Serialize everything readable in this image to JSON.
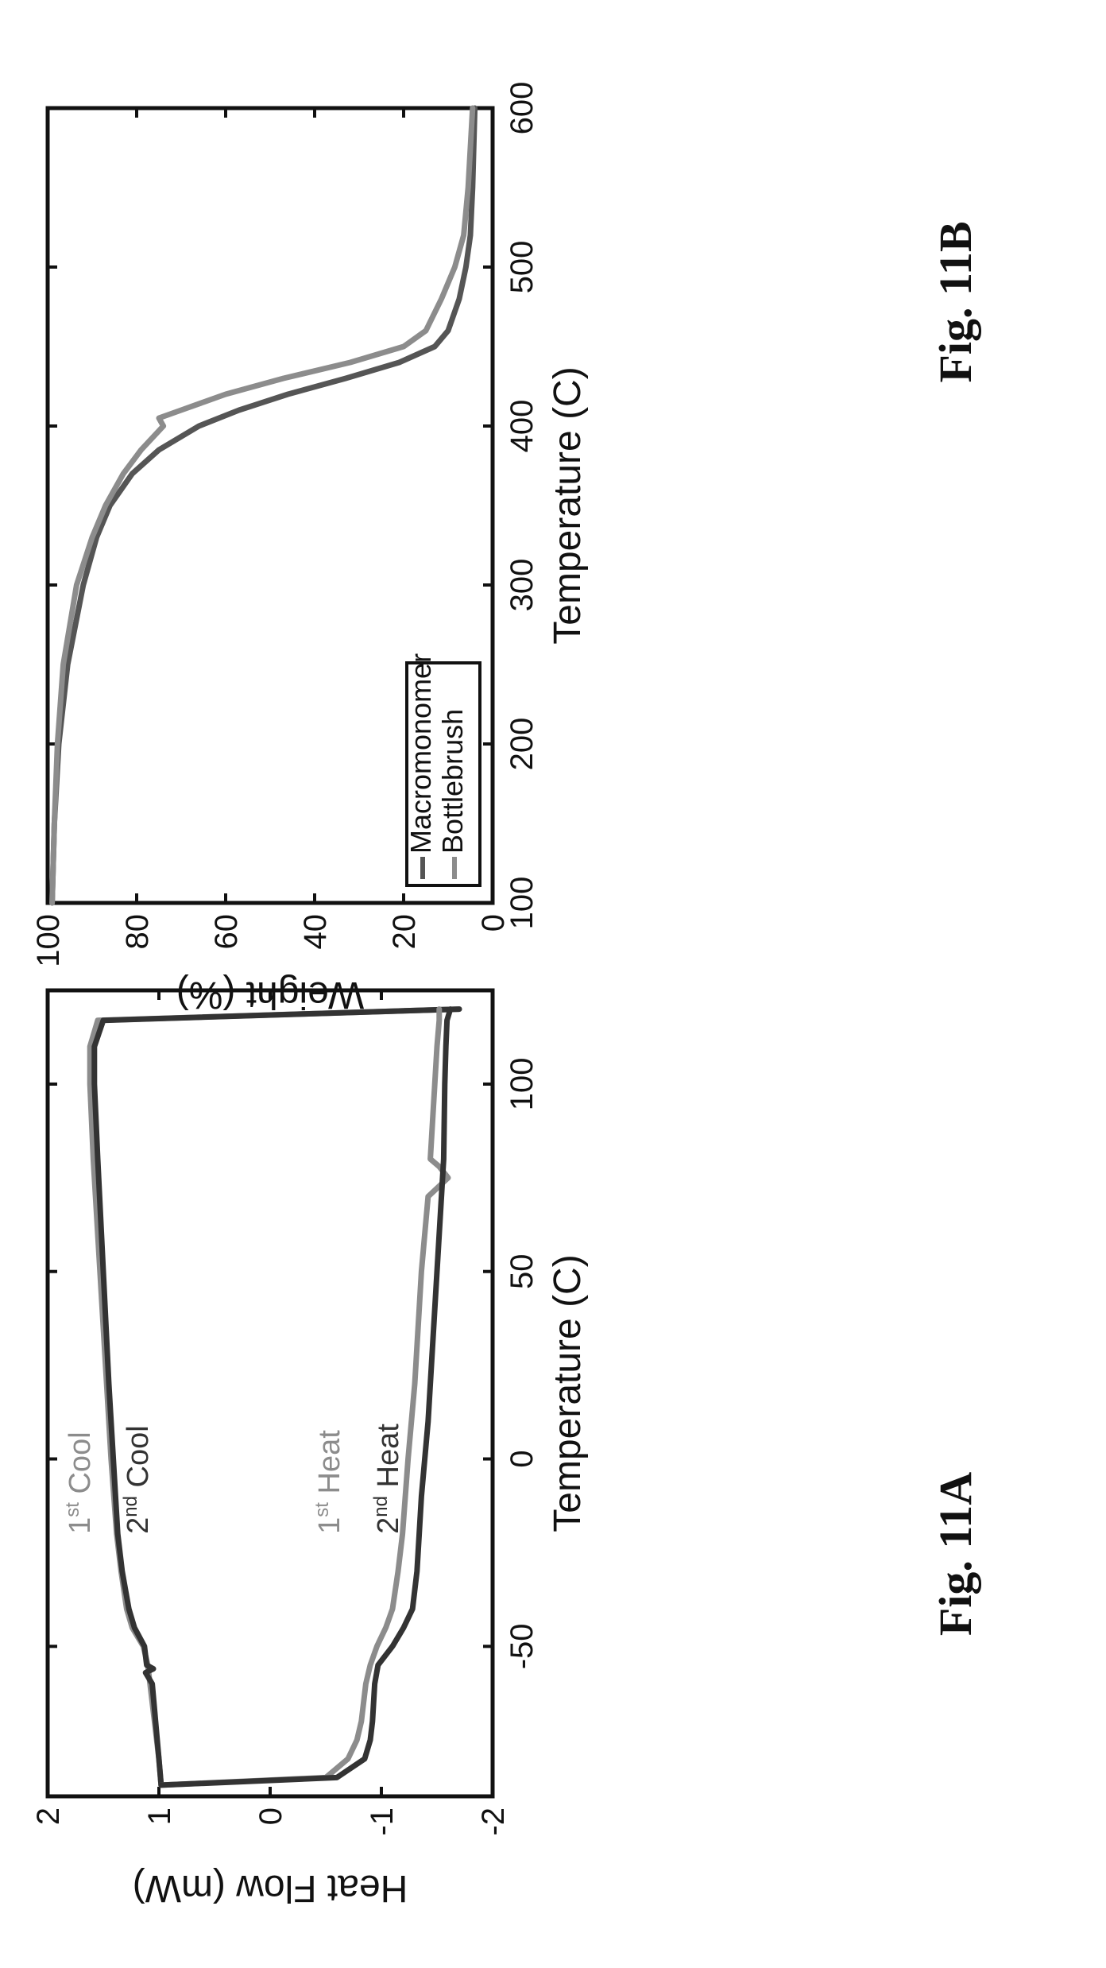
{
  "figures": {
    "fig_a_label": "Fig. 11A",
    "fig_b_label": "Fig. 11B"
  },
  "chart_data": [
    {
      "panel": "11A",
      "type": "line",
      "xlabel": "Temperature (C)",
      "ylabel": "Weight (%)",
      "xlim": [
        100,
        600
      ],
      "ylim": [
        0,
        100
      ],
      "xticks": [
        "100",
        "200",
        "300",
        "400",
        "500",
        "600"
      ],
      "yticks": [
        "0",
        "20",
        "40",
        "60",
        "80",
        "100"
      ],
      "legend_position": "lower-left",
      "grid": false,
      "series": [
        {
          "name": "Macromonomer",
          "color": "#555555",
          "x": [
            100,
            150,
            200,
            250,
            300,
            330,
            350,
            370,
            385,
            400,
            410,
            420,
            430,
            440,
            450,
            460,
            480,
            500,
            520,
            550,
            600
          ],
          "y": [
            99,
            98.5,
            97.5,
            95.5,
            92,
            89,
            86,
            81,
            75,
            66,
            57,
            46,
            33,
            21,
            13,
            10,
            7.5,
            6,
            5,
            4.5,
            4
          ]
        },
        {
          "name": "Bottlebrush",
          "color": "#8c8c8c",
          "x": [
            100,
            150,
            200,
            250,
            300,
            330,
            350,
            370,
            385,
            400,
            405,
            410,
            420,
            430,
            440,
            450,
            460,
            480,
            500,
            520,
            550,
            600
          ],
          "y": [
            99,
            98.5,
            97.8,
            96.5,
            93.5,
            90,
            87,
            83,
            79,
            74,
            75,
            70,
            60,
            47,
            32,
            20,
            15,
            11.5,
            8.5,
            6.5,
            5.5,
            4.5
          ]
        }
      ]
    },
    {
      "panel": "11B",
      "type": "line",
      "xlabel": "Temperature (C)",
      "ylabel": "Heat Flow (mW)",
      "xlim": [
        -90,
        125
      ],
      "ylim": [
        -2,
        2
      ],
      "xticks": [
        "-50",
        "0",
        "50",
        "100"
      ],
      "yticks": [
        "-2",
        "-1",
        "0",
        "1",
        "2"
      ],
      "grid": false,
      "annotations": [
        {
          "text": "1st Cool",
          "base": "1",
          "sup": "st",
          "rest": " Cool",
          "x": -20,
          "y": 1.62,
          "color": "#8c8c8c"
        },
        {
          "text": "2nd Cool",
          "base": "2",
          "sup": "nd",
          "rest": " Cool",
          "x": -20,
          "y": 1.1,
          "color": "#333333"
        },
        {
          "text": "1st Heat",
          "base": "1",
          "sup": "st",
          "rest": " Heat",
          "x": -20,
          "y": -0.62,
          "color": "#8c8c8c"
        },
        {
          "text": "2nd Heat",
          "base": "2",
          "sup": "nd",
          "rest": " Heat",
          "x": -20,
          "y": -1.15,
          "color": "#333333"
        }
      ],
      "series": [
        {
          "name": "1st Cool",
          "color": "#8c8c8c",
          "x": [
            120,
            117,
            110,
            100,
            80,
            50,
            20,
            0,
            -20,
            -30,
            -40,
            -45,
            -50,
            -55,
            -60,
            -70,
            -80,
            -87
          ],
          "y": [
            -1.7,
            1.55,
            1.62,
            1.62,
            1.59,
            1.53,
            1.47,
            1.43,
            1.38,
            1.34,
            1.29,
            1.24,
            1.14,
            1.1,
            1.08,
            1.04,
            1.0,
            0.98
          ]
        },
        {
          "name": "2nd Cool",
          "color": "#333333",
          "x": [
            120,
            117,
            110,
            100,
            80,
            50,
            20,
            0,
            -20,
            -30,
            -40,
            -45,
            -50,
            -55,
            -56,
            -57,
            -60,
            -70,
            -80,
            -87
          ],
          "y": [
            -1.7,
            1.5,
            1.58,
            1.58,
            1.55,
            1.5,
            1.45,
            1.41,
            1.37,
            1.33,
            1.27,
            1.22,
            1.13,
            1.11,
            1.05,
            1.12,
            1.06,
            1.03,
            1.0,
            0.98
          ]
        },
        {
          "name": "1st Heat",
          "color": "#8c8c8c",
          "x": [
            -87,
            -85,
            -80,
            -75,
            -70,
            -60,
            -55,
            -50,
            -45,
            -40,
            -30,
            -20,
            0,
            20,
            50,
            70,
            75,
            78,
            80,
            90,
            100,
            110,
            117,
            120
          ],
          "y": [
            0.98,
            -0.5,
            -0.7,
            -0.78,
            -0.82,
            -0.86,
            -0.9,
            -0.96,
            -1.04,
            -1.1,
            -1.15,
            -1.19,
            -1.24,
            -1.3,
            -1.36,
            -1.42,
            -1.6,
            -1.52,
            -1.44,
            -1.46,
            -1.48,
            -1.5,
            -1.52,
            -1.52
          ]
        },
        {
          "name": "2nd Heat",
          "color": "#333333",
          "x": [
            -87,
            -85,
            -80,
            -75,
            -70,
            -60,
            -55,
            -50,
            -45,
            -40,
            -30,
            -20,
            -10,
            10,
            50,
            80,
            100,
            110,
            117,
            120
          ],
          "y": [
            0.98,
            -0.6,
            -0.85,
            -0.9,
            -0.92,
            -0.94,
            -0.97,
            -1.1,
            -1.2,
            -1.28,
            -1.32,
            -1.34,
            -1.36,
            -1.42,
            -1.5,
            -1.56,
            -1.57,
            -1.58,
            -1.59,
            -1.62
          ]
        }
      ]
    }
  ]
}
